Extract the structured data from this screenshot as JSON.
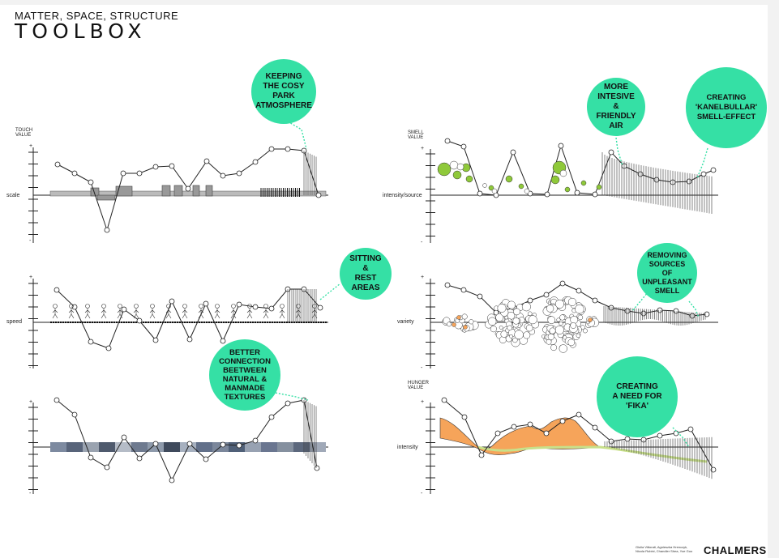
{
  "header": {
    "subtitle": "MATTER, SPACE, STRUCTURE",
    "title": "TOOLBOX"
  },
  "panels": [
    {
      "id": "touch",
      "value_label": "TOUCH\nVALUE",
      "axis_label": "scale",
      "plus": "+",
      "minus": "-",
      "bubble": "KEEPING\nTHE COSY\nPARK\nATMOSPHERE"
    },
    {
      "id": "speed",
      "value_label": "",
      "axis_label": "speed",
      "plus": "+",
      "minus": "-",
      "bubble": "SITTING\n&\nREST\nAREAS"
    },
    {
      "id": "textures",
      "value_label": "",
      "axis_label": "",
      "plus": "+",
      "minus": "-",
      "bubble": "BETTER\nCONNECTION\nBEETWEEN\nNATURAL &\nMANMADE\nTEXTURES"
    },
    {
      "id": "smell",
      "value_label": "SMELL\nVALUE",
      "axis_label": "intensity/source",
      "plus": "+",
      "minus": "-",
      "bubble": "MORE\nINTESIVE\n&\nFRIENDLY\nAIR",
      "bubble2": "CREATING\n'KANELBULLAR'\nSMELL-EFFECT"
    },
    {
      "id": "variety",
      "value_label": "",
      "axis_label": "variety",
      "plus": "+",
      "minus": "-",
      "bubble": "REMOVING\nSOURCES\nOF\nUNPLEASANT\nSMELL"
    },
    {
      "id": "hunger",
      "value_label": "HUNGER\nVALUE",
      "axis_label": "intensity",
      "plus": "+",
      "minus": "-",
      "bubble": "CREATING\nA NEED FOR\n'FIKA'"
    }
  ],
  "footer": {
    "credits": "Giulia Vittorati, Agnieszka Hrenczyk,\nNicola Rubini, Chandler Shea, Yue Guo",
    "logo": "CHALMERS"
  },
  "colors": {
    "accent": "#35e0a5",
    "orange": "#f6a45a",
    "green_dots": "#8fc93a",
    "line": "#222222"
  }
}
